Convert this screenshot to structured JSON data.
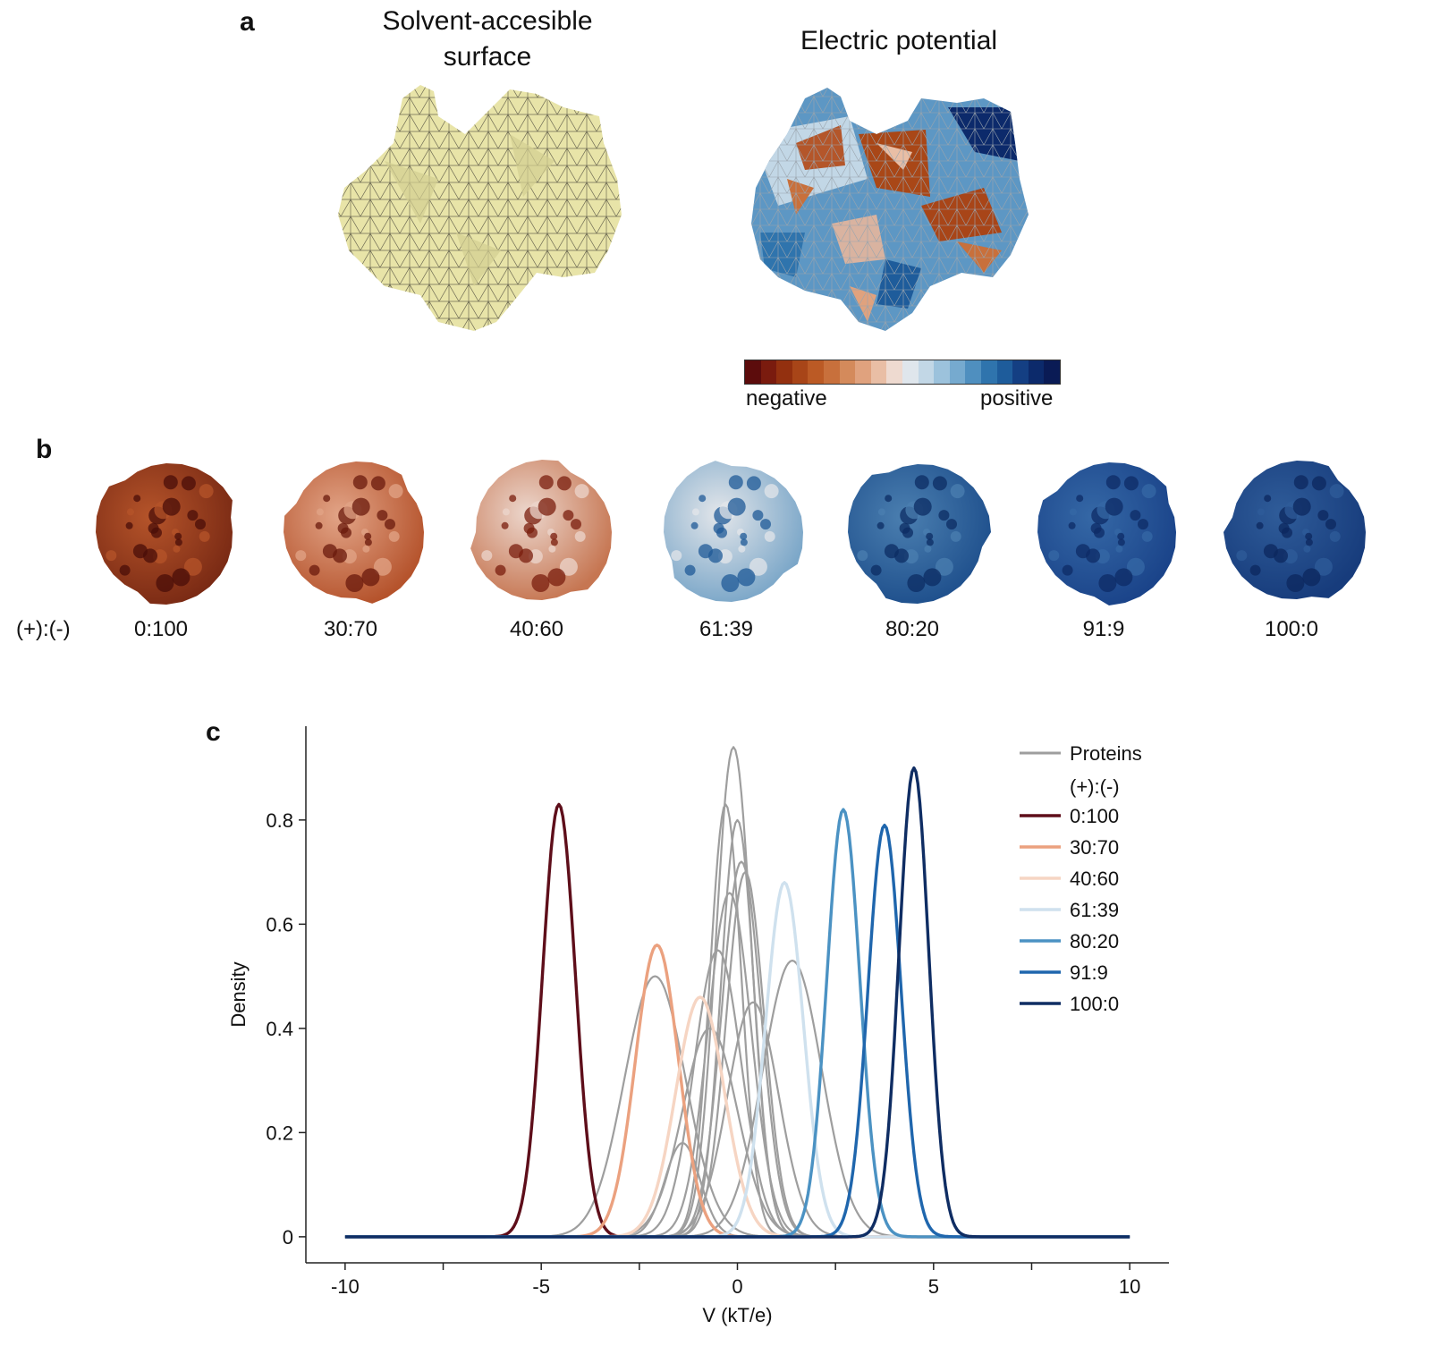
{
  "panels": {
    "a": {
      "letter": "a",
      "left_title": "Solvent-accesible\nsurface",
      "right_title": "Electric potential",
      "colorbar": {
        "low_label": "negative",
        "high_label": "positive",
        "colors": [
          "#5c0c0c",
          "#7a1b0e",
          "#93300f",
          "#a84518",
          "#bb5a25",
          "#c8703c",
          "#d48a5b",
          "#e0a27e",
          "#e9bea5",
          "#eedad0",
          "#dfe6ec",
          "#c2d7e6",
          "#9cc2dc",
          "#76aacf",
          "#4f8fbf",
          "#2f74ad",
          "#1e5c9b",
          "#143f83",
          "#0c2a6b",
          "#0a1b55"
        ]
      }
    },
    "b": {
      "letter": "b",
      "ratio_label": "(+):(-)",
      "ratios": [
        "0:100",
        "30:70",
        "40:60",
        "61:39",
        "80:20",
        "91:9",
        "100:0"
      ],
      "sphere_colors": [
        {
          "base": "#7a2a14",
          "hi": "#b5542a",
          "spot": "#4a0e08"
        },
        {
          "base": "#b5532c",
          "hi": "#e2a487",
          "spot": "#6a1a0c"
        },
        {
          "base": "#c67652",
          "hi": "#ecd6cc",
          "spot": "#7a1e0e"
        },
        {
          "base": "#7aa6c8",
          "hi": "#e3e6ea",
          "spot": "#1f5a97"
        },
        {
          "base": "#1e4f8c",
          "hi": "#4b7fb0",
          "spot": "#0c2c63"
        },
        {
          "base": "#1a4389",
          "hi": "#3568a6",
          "spot": "#0d2b66"
        },
        {
          "base": "#173c7c",
          "hi": "#2f5c99",
          "spot": "#0c275e"
        }
      ]
    },
    "c": {
      "letter": "c"
    }
  },
  "chart_data": {
    "type": "line",
    "xlabel": "V (kT/e)",
    "ylabel": "Density",
    "xlim": [
      -11,
      11
    ],
    "ylim": [
      -0.05,
      0.98
    ],
    "xticks": [
      -10,
      -5,
      0,
      5,
      10
    ],
    "xtick_labels": [
      "-10",
      "-5",
      "0",
      "5",
      "10"
    ],
    "yticks": [
      0,
      0.2,
      0.4,
      0.6,
      0.8
    ],
    "ytick_labels": [
      "0",
      "0.2",
      "0.4",
      "0.6",
      "0.8"
    ],
    "legend": {
      "position": "top-right",
      "proteins_label": "Proteins",
      "ratio_header": "(+):(-)"
    },
    "protein_color": "#9e9e9e",
    "proteins": [
      {
        "mu": -2.1,
        "sigma": 0.78,
        "peak": 0.5
      },
      {
        "mu": -1.4,
        "sigma": 0.45,
        "peak": 0.18
      },
      {
        "mu": -0.3,
        "sigma": 0.4,
        "peak": 0.83
      },
      {
        "mu": -0.1,
        "sigma": 0.45,
        "peak": 0.94
      },
      {
        "mu": 0.0,
        "sigma": 0.42,
        "peak": 0.8
      },
      {
        "mu": 0.1,
        "sigma": 0.5,
        "peak": 0.72
      },
      {
        "mu": -0.2,
        "sigma": 0.55,
        "peak": 0.66
      },
      {
        "mu": 0.2,
        "sigma": 0.48,
        "peak": 0.7
      },
      {
        "mu": -0.5,
        "sigma": 0.6,
        "peak": 0.55
      },
      {
        "mu": 1.4,
        "sigma": 0.75,
        "peak": 0.53
      },
      {
        "mu": -0.7,
        "sigma": 0.7,
        "peak": 0.4
      },
      {
        "mu": 0.4,
        "sigma": 0.65,
        "peak": 0.45
      }
    ],
    "series": [
      {
        "name": "0:100",
        "color": "#5e0e1a",
        "mu": -4.55,
        "sigma": 0.42,
        "peak": 0.83
      },
      {
        "name": "30:70",
        "color": "#eba17f",
        "mu": -2.05,
        "sigma": 0.55,
        "peak": 0.56
      },
      {
        "name": "40:60",
        "color": "#f6d5c3",
        "mu": -0.95,
        "sigma": 0.62,
        "peak": 0.46
      },
      {
        "name": "61:39",
        "color": "#cfe1ee",
        "mu": 1.2,
        "sigma": 0.48,
        "peak": 0.68
      },
      {
        "name": "80:20",
        "color": "#4b92c3",
        "mu": 2.7,
        "sigma": 0.42,
        "peak": 0.82
      },
      {
        "name": "91:9",
        "color": "#1f66ad",
        "mu": 3.75,
        "sigma": 0.42,
        "peak": 0.79
      },
      {
        "name": "100:0",
        "color": "#0f2d63",
        "mu": 4.5,
        "sigma": 0.38,
        "peak": 0.9
      }
    ]
  }
}
